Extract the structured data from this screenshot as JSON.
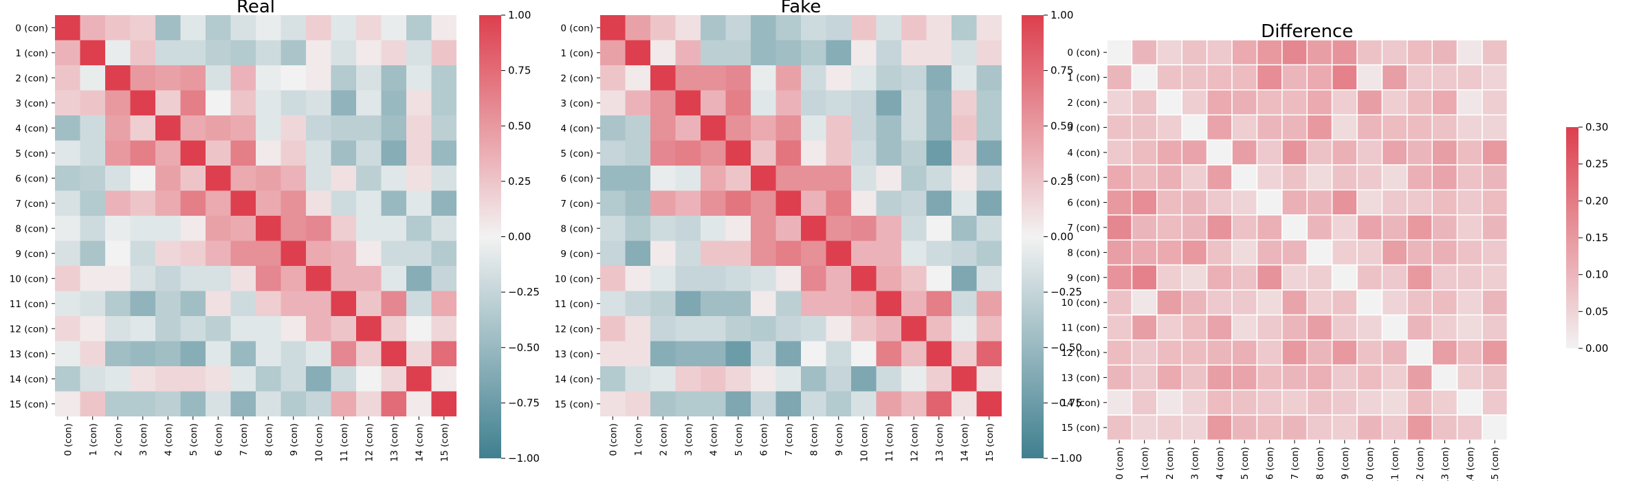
{
  "colors": {
    "negative": "#3f7f8f",
    "mid": "#f2f2f2",
    "positive": "#dd3f4e"
  },
  "chart_data": [
    {
      "type": "heatmap",
      "title": "Real",
      "labels": [
        "0 (con)",
        "1 (con)",
        "2 (con)",
        "3 (con)",
        "4 (con)",
        "5 (con)",
        "6 (con)",
        "7 (con)",
        "8 (con)",
        "9 (con)",
        "10 (con)",
        "11 (con)",
        "12 (con)",
        "13 (con)",
        "14 (con)",
        "15 (con)"
      ],
      "vmin": -1,
      "vmax": 1,
      "colorbar_ticks": [
        "1.00",
        "0.75",
        "0.50",
        "0.25",
        "0.00",
        "−0.25",
        "−0.50",
        "−0.75",
        "−1.00"
      ],
      "matrix": [
        [
          1.0,
          0.35,
          0.25,
          0.2,
          -0.45,
          -0.1,
          -0.35,
          -0.15,
          -0.05,
          -0.15,
          0.2,
          -0.1,
          0.15,
          -0.05,
          -0.35,
          0.05
        ],
        [
          0.35,
          1.0,
          -0.05,
          0.25,
          -0.2,
          -0.2,
          -0.3,
          -0.35,
          -0.2,
          -0.4,
          0.05,
          -0.15,
          0.05,
          0.15,
          -0.15,
          0.25
        ],
        [
          0.25,
          -0.05,
          1.0,
          0.5,
          0.45,
          0.5,
          -0.15,
          0.35,
          -0.05,
          0.0,
          0.05,
          -0.35,
          -0.15,
          -0.45,
          -0.1,
          -0.35
        ],
        [
          0.2,
          0.25,
          0.5,
          1.0,
          0.2,
          0.65,
          0.0,
          0.25,
          -0.1,
          -0.2,
          -0.15,
          -0.55,
          -0.1,
          -0.5,
          0.1,
          -0.35
        ],
        [
          -0.45,
          -0.2,
          0.45,
          0.2,
          1.0,
          0.4,
          0.45,
          0.4,
          -0.1,
          0.15,
          -0.25,
          -0.3,
          -0.3,
          -0.45,
          0.15,
          -0.3
        ],
        [
          -0.1,
          -0.2,
          0.5,
          0.65,
          0.4,
          1.0,
          0.25,
          0.65,
          0.05,
          0.2,
          -0.15,
          -0.45,
          -0.2,
          -0.6,
          0.15,
          -0.5
        ],
        [
          -0.35,
          -0.3,
          -0.15,
          0.0,
          0.45,
          0.25,
          1.0,
          0.4,
          0.45,
          0.35,
          -0.15,
          0.1,
          -0.3,
          -0.1,
          0.1,
          -0.15
        ],
        [
          -0.15,
          -0.35,
          0.35,
          0.25,
          0.4,
          0.65,
          0.4,
          1.0,
          0.4,
          0.55,
          0.1,
          -0.2,
          -0.1,
          -0.5,
          -0.1,
          -0.55
        ],
        [
          -0.05,
          -0.2,
          -0.05,
          -0.1,
          -0.1,
          0.05,
          0.45,
          0.4,
          1.0,
          0.55,
          0.6,
          0.2,
          -0.1,
          -0.1,
          -0.35,
          -0.15
        ],
        [
          -0.15,
          -0.4,
          0.0,
          -0.2,
          0.15,
          0.2,
          0.35,
          0.55,
          0.55,
          1.0,
          0.4,
          0.35,
          0.05,
          -0.2,
          -0.2,
          -0.35
        ],
        [
          0.2,
          0.05,
          0.05,
          -0.15,
          -0.25,
          -0.15,
          -0.15,
          0.1,
          0.6,
          0.4,
          1.0,
          0.35,
          0.35,
          -0.1,
          -0.6,
          -0.25
        ],
        [
          -0.1,
          -0.15,
          -0.35,
          -0.55,
          -0.3,
          -0.45,
          0.1,
          -0.2,
          0.2,
          0.35,
          0.35,
          1.0,
          0.25,
          0.6,
          -0.2,
          0.4
        ],
        [
          0.15,
          0.05,
          -0.15,
          -0.1,
          -0.3,
          -0.2,
          -0.3,
          -0.1,
          -0.1,
          0.05,
          0.35,
          0.25,
          1.0,
          0.2,
          0.0,
          0.15
        ],
        [
          -0.05,
          0.15,
          -0.45,
          -0.5,
          -0.45,
          -0.6,
          -0.1,
          -0.5,
          -0.1,
          -0.2,
          -0.1,
          0.6,
          0.2,
          1.0,
          0.15,
          0.75
        ],
        [
          -0.35,
          -0.15,
          -0.1,
          0.1,
          0.15,
          0.15,
          0.1,
          -0.1,
          -0.35,
          -0.2,
          -0.6,
          -0.2,
          0.0,
          0.15,
          1.0,
          0.05
        ],
        [
          0.05,
          0.25,
          -0.35,
          -0.35,
          -0.3,
          -0.5,
          -0.15,
          -0.55,
          -0.15,
          -0.35,
          -0.25,
          0.4,
          0.15,
          0.75,
          0.05,
          1.0
        ]
      ]
    },
    {
      "type": "heatmap",
      "title": "Fake",
      "labels": [
        "0 (con)",
        "1 (con)",
        "2 (con)",
        "3 (con)",
        "4 (con)",
        "5 (con)",
        "6 (con)",
        "7 (con)",
        "8 (con)",
        "9 (con)",
        "10 (con)",
        "11 (con)",
        "12 (con)",
        "13 (con)",
        "14 (con)",
        "15 (con)"
      ],
      "vmin": -1,
      "vmax": 1,
      "colorbar_ticks": [
        "1.00",
        "0.75",
        "0.50",
        "0.25",
        "0.00",
        "−0.25",
        "−0.50",
        "−0.75",
        "−1.00"
      ],
      "matrix": [
        [
          1.0,
          0.45,
          0.25,
          0.1,
          -0.4,
          -0.25,
          -0.5,
          -0.35,
          -0.2,
          -0.25,
          0.25,
          -0.15,
          0.25,
          0.1,
          -0.35,
          0.1
        ],
        [
          0.45,
          1.0,
          0.05,
          0.35,
          -0.3,
          -0.3,
          -0.5,
          -0.45,
          -0.35,
          -0.6,
          0.05,
          -0.25,
          0.1,
          0.1,
          -0.15,
          0.15
        ],
        [
          0.25,
          0.05,
          1.0,
          0.55,
          0.55,
          0.6,
          -0.05,
          0.45,
          -0.2,
          0.05,
          -0.1,
          -0.3,
          -0.25,
          -0.6,
          -0.1,
          -0.4
        ],
        [
          0.1,
          0.35,
          0.55,
          1.0,
          0.35,
          0.65,
          -0.1,
          0.35,
          -0.25,
          -0.2,
          -0.25,
          -0.65,
          -0.2,
          -0.55,
          0.2,
          -0.35
        ],
        [
          -0.4,
          -0.3,
          0.55,
          0.35,
          1.0,
          0.55,
          0.4,
          0.55,
          -0.1,
          0.25,
          -0.25,
          -0.45,
          -0.2,
          -0.55,
          0.25,
          -0.35
        ],
        [
          -0.25,
          -0.3,
          0.6,
          0.65,
          0.55,
          1.0,
          0.25,
          0.7,
          0.05,
          0.25,
          -0.2,
          -0.45,
          -0.3,
          -0.75,
          0.15,
          -0.65
        ],
        [
          -0.5,
          -0.5,
          -0.05,
          -0.1,
          0.4,
          0.25,
          1.0,
          0.55,
          0.55,
          0.55,
          -0.15,
          0.05,
          -0.35,
          -0.2,
          0.05,
          -0.25
        ],
        [
          -0.35,
          -0.45,
          0.45,
          0.35,
          0.55,
          0.7,
          0.55,
          1.0,
          0.35,
          0.65,
          0.05,
          -0.3,
          -0.25,
          -0.65,
          -0.1,
          -0.65
        ],
        [
          -0.2,
          -0.35,
          -0.2,
          -0.25,
          -0.1,
          0.05,
          0.55,
          0.35,
          1.0,
          0.55,
          0.6,
          0.35,
          -0.2,
          0.0,
          -0.45,
          -0.2
        ],
        [
          -0.25,
          -0.6,
          0.05,
          -0.2,
          0.25,
          0.25,
          0.55,
          0.65,
          0.55,
          1.0,
          0.35,
          0.35,
          -0.1,
          -0.2,
          -0.25,
          -0.35
        ],
        [
          0.25,
          0.05,
          -0.1,
          -0.25,
          -0.25,
          -0.2,
          -0.15,
          0.05,
          0.6,
          0.35,
          1.0,
          0.4,
          0.25,
          0.0,
          -0.65,
          -0.15
        ],
        [
          -0.15,
          -0.25,
          -0.3,
          -0.65,
          -0.45,
          -0.45,
          0.05,
          -0.3,
          0.35,
          0.35,
          0.4,
          1.0,
          0.35,
          0.65,
          -0.2,
          0.45
        ],
        [
          0.25,
          0.1,
          -0.25,
          -0.2,
          -0.2,
          -0.3,
          -0.35,
          -0.25,
          -0.2,
          0.05,
          0.25,
          0.35,
          1.0,
          0.3,
          -0.05,
          0.3
        ],
        [
          0.1,
          0.1,
          -0.6,
          -0.55,
          -0.55,
          -0.75,
          -0.2,
          -0.65,
          0.0,
          -0.2,
          0.0,
          0.65,
          0.3,
          1.0,
          0.2,
          0.8
        ],
        [
          -0.35,
          -0.15,
          -0.1,
          0.2,
          0.25,
          0.15,
          0.05,
          -0.1,
          -0.45,
          -0.25,
          -0.65,
          -0.2,
          -0.05,
          0.2,
          1.0,
          0.1
        ],
        [
          0.1,
          0.15,
          -0.4,
          -0.35,
          -0.35,
          -0.65,
          -0.25,
          -0.65,
          -0.2,
          -0.35,
          -0.15,
          0.45,
          0.3,
          0.8,
          0.1,
          1.0
        ]
      ]
    },
    {
      "type": "heatmap",
      "title": "Difference",
      "labels": [
        "0 (con)",
        "1 (con)",
        "2 (con)",
        "3 (con)",
        "4 (con)",
        "5 (con)",
        "6 (con)",
        "7 (con)",
        "8 (con)",
        "9 (con)",
        "10 (con)",
        "11 (con)",
        "12 (con)",
        "13 (con)",
        "14 (con)",
        "15 (con)"
      ],
      "vmin": 0,
      "vmax": 0.3,
      "colorbar_ticks": [
        "0.30",
        "0.25",
        "0.20",
        "0.15",
        "0.10",
        "0.05",
        "0.00"
      ],
      "matrix": [
        [
          0.0,
          0.1,
          0.05,
          0.08,
          0.07,
          0.12,
          0.15,
          0.18,
          0.14,
          0.16,
          0.08,
          0.07,
          0.09,
          0.1,
          0.02,
          0.08
        ],
        [
          0.1,
          0.0,
          0.08,
          0.08,
          0.09,
          0.09,
          0.17,
          0.1,
          0.12,
          0.19,
          0.02,
          0.14,
          0.07,
          0.07,
          0.07,
          0.05
        ],
        [
          0.05,
          0.08,
          0.0,
          0.06,
          0.12,
          0.11,
          0.09,
          0.09,
          0.12,
          0.06,
          0.14,
          0.06,
          0.09,
          0.12,
          0.02,
          0.06
        ],
        [
          0.08,
          0.08,
          0.06,
          0.0,
          0.13,
          0.06,
          0.1,
          0.1,
          0.15,
          0.04,
          0.1,
          0.09,
          0.09,
          0.08,
          0.05,
          0.05
        ],
        [
          0.07,
          0.09,
          0.12,
          0.13,
          0.0,
          0.14,
          0.07,
          0.16,
          0.08,
          0.11,
          0.07,
          0.13,
          0.1,
          0.14,
          0.09,
          0.15
        ],
        [
          0.12,
          0.09,
          0.11,
          0.06,
          0.14,
          0.0,
          0.05,
          0.08,
          0.04,
          0.08,
          0.07,
          0.04,
          0.11,
          0.13,
          0.08,
          0.1
        ],
        [
          0.15,
          0.17,
          0.09,
          0.1,
          0.07,
          0.05,
          0.0,
          0.11,
          0.1,
          0.16,
          0.04,
          0.07,
          0.07,
          0.09,
          0.07,
          0.09
        ],
        [
          0.18,
          0.1,
          0.09,
          0.1,
          0.16,
          0.08,
          0.11,
          0.0,
          0.1,
          0.05,
          0.13,
          0.1,
          0.15,
          0.1,
          0.06,
          0.1
        ],
        [
          0.14,
          0.12,
          0.12,
          0.15,
          0.08,
          0.04,
          0.1,
          0.1,
          0.0,
          0.06,
          0.06,
          0.14,
          0.1,
          0.11,
          0.08,
          0.07
        ],
        [
          0.16,
          0.19,
          0.06,
          0.04,
          0.11,
          0.08,
          0.16,
          0.05,
          0.06,
          0.0,
          0.08,
          0.07,
          0.15,
          0.07,
          0.07,
          0.06
        ],
        [
          0.08,
          0.02,
          0.14,
          0.1,
          0.07,
          0.07,
          0.04,
          0.13,
          0.06,
          0.08,
          0.0,
          0.05,
          0.08,
          0.09,
          0.05,
          0.1
        ],
        [
          0.07,
          0.14,
          0.06,
          0.09,
          0.13,
          0.04,
          0.07,
          0.1,
          0.14,
          0.07,
          0.05,
          0.0,
          0.1,
          0.06,
          0.04,
          0.07
        ],
        [
          0.09,
          0.07,
          0.09,
          0.09,
          0.1,
          0.11,
          0.07,
          0.15,
          0.1,
          0.15,
          0.08,
          0.1,
          0.0,
          0.14,
          0.09,
          0.15
        ],
        [
          0.1,
          0.07,
          0.12,
          0.08,
          0.14,
          0.13,
          0.09,
          0.1,
          0.11,
          0.07,
          0.09,
          0.06,
          0.14,
          0.0,
          0.06,
          0.08
        ],
        [
          0.02,
          0.07,
          0.02,
          0.05,
          0.09,
          0.08,
          0.07,
          0.06,
          0.08,
          0.07,
          0.05,
          0.04,
          0.09,
          0.06,
          0.0,
          0.07
        ],
        [
          0.08,
          0.05,
          0.06,
          0.05,
          0.15,
          0.1,
          0.09,
          0.1,
          0.07,
          0.06,
          0.1,
          0.07,
          0.15,
          0.08,
          0.07,
          0.0
        ]
      ]
    }
  ]
}
